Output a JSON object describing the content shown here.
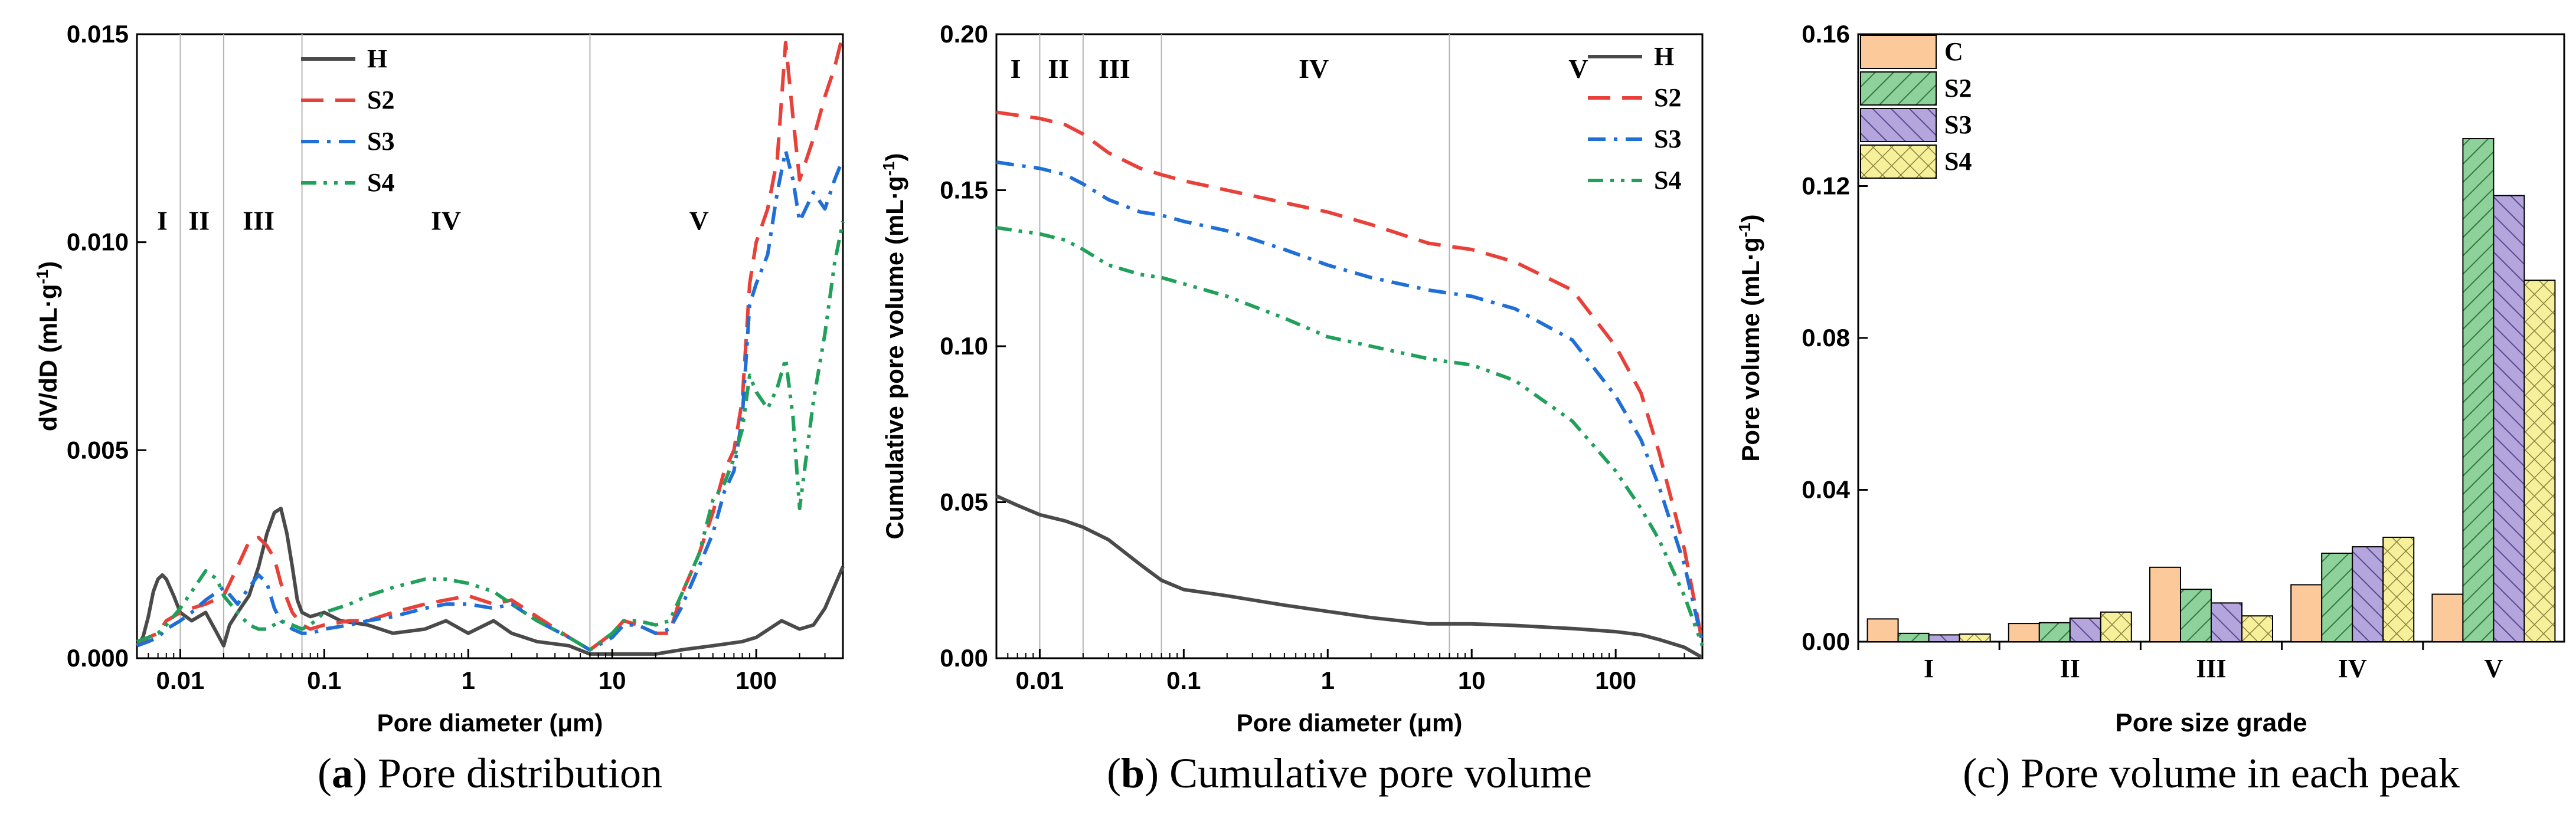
{
  "figure": {
    "captions": [
      {
        "letter": "a",
        "text": "Pore distribution"
      },
      {
        "letter": "b",
        "text": "Cumulative pore volume"
      },
      {
        "letter": "c",
        "text": "Pore volume in each peak"
      }
    ]
  },
  "chart_data": [
    {
      "id": "a",
      "type": "line",
      "title": "Pore distribution",
      "xlabel": "Pore diameter  (μm)",
      "ylabel": "dV/dD  (mL·g⁻¹)",
      "xscale": "log",
      "xlim": [
        0.005,
        400
      ],
      "ylim": [
        0,
        0.015
      ],
      "xticks": [
        0.01,
        0.1,
        1,
        10,
        100
      ],
      "xtick_labels": [
        "0.01",
        "0.1",
        "1",
        "10",
        "100"
      ],
      "yticks": [
        0,
        0.005,
        0.01,
        0.015
      ],
      "ytick_labels": [
        "0.000",
        "0.005",
        "0.010",
        "0.015"
      ],
      "grid": false,
      "legend_position": "top-center",
      "region_lines": [
        0.01,
        0.02,
        0.07,
        7
      ],
      "region_labels": [
        {
          "text": "I",
          "x": 0.0075,
          "y": 0.0103
        },
        {
          "text": "II",
          "x": 0.0135,
          "y": 0.0103
        },
        {
          "text": "III",
          "x": 0.035,
          "y": 0.0103
        },
        {
          "text": "IV",
          "x": 0.7,
          "y": 0.0103
        },
        {
          "text": "V",
          "x": 40,
          "y": 0.0103
        }
      ],
      "series": [
        {
          "name": "H",
          "color": "#4a4a4a",
          "dash": "solid",
          "x": [
            0.005,
            0.0055,
            0.006,
            0.0065,
            0.007,
            0.0075,
            0.008,
            0.009,
            0.01,
            0.012,
            0.015,
            0.018,
            0.02,
            0.022,
            0.025,
            0.03,
            0.035,
            0.04,
            0.045,
            0.05,
            0.055,
            0.06,
            0.065,
            0.07,
            0.08,
            0.1,
            0.13,
            0.2,
            0.3,
            0.5,
            0.7,
            1,
            1.5,
            2,
            3,
            5,
            7,
            10,
            15,
            20,
            30,
            50,
            80,
            100,
            150,
            200,
            250,
            300,
            400
          ],
          "y": [
            0.0003,
            0.0005,
            0.001,
            0.0016,
            0.0019,
            0.002,
            0.0019,
            0.0015,
            0.0011,
            0.0009,
            0.0011,
            0.0006,
            0.0003,
            0.0008,
            0.0011,
            0.0015,
            0.0022,
            0.003,
            0.0035,
            0.0036,
            0.003,
            0.0022,
            0.0014,
            0.0011,
            0.001,
            0.0011,
            0.0009,
            0.0008,
            0.0006,
            0.0007,
            0.0009,
            0.0006,
            0.0009,
            0.0006,
            0.0004,
            0.0003,
            0.0001,
            0.0001,
            0.0001,
            0.0001,
            0.0002,
            0.0003,
            0.0004,
            0.0005,
            0.0009,
            0.0007,
            0.0008,
            0.0012,
            0.0022
          ]
        },
        {
          "name": "S2",
          "color": "#e8413a",
          "dash": "long-dash",
          "x": [
            0.005,
            0.006,
            0.007,
            0.008,
            0.01,
            0.012,
            0.015,
            0.02,
            0.025,
            0.03,
            0.035,
            0.04,
            0.045,
            0.05,
            0.06,
            0.07,
            0.08,
            0.1,
            0.15,
            0.2,
            0.3,
            0.5,
            0.7,
            1,
            1.5,
            2,
            3,
            5,
            7,
            10,
            12,
            15,
            20,
            25,
            30,
            40,
            50,
            60,
            70,
            80,
            90,
            100,
            120,
            140,
            160,
            180,
            200,
            250,
            300,
            350,
            400
          ],
          "y": [
            0.0003,
            0.0005,
            0.0006,
            0.0009,
            0.0011,
            0.0012,
            0.0013,
            0.0015,
            0.0022,
            0.0028,
            0.0029,
            0.0027,
            0.0024,
            0.0018,
            0.0011,
            0.0008,
            0.0007,
            0.0008,
            0.0009,
            0.0009,
            0.0011,
            0.0013,
            0.0014,
            0.0015,
            0.0013,
            0.0014,
            0.001,
            0.0005,
            0.0002,
            0.0006,
            0.0009,
            0.0008,
            0.0006,
            0.0006,
            0.0015,
            0.0025,
            0.0035,
            0.0045,
            0.005,
            0.0062,
            0.009,
            0.01,
            0.0108,
            0.012,
            0.0148,
            0.013,
            0.0115,
            0.0125,
            0.0135,
            0.0142,
            0.015
          ]
        },
        {
          "name": "S3",
          "color": "#1f6fd6",
          "dash": "dash-dot",
          "x": [
            0.005,
            0.006,
            0.007,
            0.008,
            0.01,
            0.012,
            0.015,
            0.02,
            0.025,
            0.03,
            0.035,
            0.04,
            0.045,
            0.05,
            0.06,
            0.07,
            0.08,
            0.1,
            0.15,
            0.2,
            0.3,
            0.5,
            0.7,
            1,
            1.5,
            2,
            3,
            5,
            7,
            10,
            12,
            15,
            20,
            25,
            30,
            40,
            50,
            60,
            70,
            80,
            90,
            100,
            120,
            140,
            160,
            180,
            200,
            250,
            300,
            350,
            400
          ],
          "y": [
            0.0003,
            0.0004,
            0.0005,
            0.0007,
            0.0009,
            0.0011,
            0.0014,
            0.0017,
            0.0013,
            0.0017,
            0.002,
            0.0018,
            0.0012,
            0.0009,
            0.0007,
            0.0006,
            0.0006,
            0.0007,
            0.0008,
            0.0009,
            0.001,
            0.0012,
            0.0013,
            0.0013,
            0.0012,
            0.0013,
            0.0009,
            0.0005,
            0.0002,
            0.0005,
            0.0008,
            0.0008,
            0.0006,
            0.0007,
            0.0012,
            0.0022,
            0.003,
            0.004,
            0.0045,
            0.0058,
            0.0085,
            0.009,
            0.0097,
            0.0112,
            0.0122,
            0.0115,
            0.0105,
            0.0112,
            0.0108,
            0.0115,
            0.012
          ]
        },
        {
          "name": "S4",
          "color": "#21a05a",
          "dash": "dash-dot-dot",
          "x": [
            0.005,
            0.006,
            0.007,
            0.008,
            0.01,
            0.012,
            0.015,
            0.018,
            0.02,
            0.025,
            0.03,
            0.035,
            0.04,
            0.05,
            0.06,
            0.07,
            0.08,
            0.1,
            0.15,
            0.2,
            0.3,
            0.5,
            0.7,
            1,
            1.5,
            2,
            3,
            5,
            7,
            10,
            12,
            15,
            20,
            25,
            30,
            40,
            50,
            60,
            70,
            80,
            90,
            100,
            120,
            140,
            160,
            180,
            200,
            250,
            300,
            350,
            400
          ],
          "y": [
            0.0004,
            0.0005,
            0.0006,
            0.0008,
            0.0012,
            0.0016,
            0.0021,
            0.0019,
            0.0015,
            0.0011,
            0.0008,
            0.0007,
            0.0007,
            0.0009,
            0.0008,
            0.0007,
            0.0008,
            0.0011,
            0.0013,
            0.0015,
            0.0017,
            0.0019,
            0.0019,
            0.0018,
            0.0016,
            0.0013,
            0.0009,
            0.0005,
            0.0002,
            0.0006,
            0.0009,
            0.0009,
            0.0008,
            0.0009,
            0.0015,
            0.0025,
            0.0038,
            0.0042,
            0.0048,
            0.0055,
            0.0068,
            0.0064,
            0.006,
            0.0065,
            0.0072,
            0.0058,
            0.0036,
            0.0062,
            0.0078,
            0.0095,
            0.0105
          ]
        }
      ]
    },
    {
      "id": "b",
      "type": "line",
      "title": "Cumulative pore volume",
      "xlabel": "Pore diameter  (μm)",
      "ylabel": "Cumulative pore volume  (mL·g⁻¹)",
      "xscale": "log",
      "xlim": [
        0.005,
        400
      ],
      "ylim": [
        0,
        0.2
      ],
      "xticks": [
        0.01,
        0.1,
        1,
        10,
        100
      ],
      "xtick_labels": [
        "0.01",
        "0.1",
        "1",
        "10",
        "100"
      ],
      "yticks": [
        0,
        0.05,
        0.1,
        0.15,
        0.2
      ],
      "ytick_labels": [
        "0.00",
        "0.05",
        "0.10",
        "0.15",
        "0.20"
      ],
      "grid": false,
      "legend_position": "top-right",
      "region_lines": [
        0.01,
        0.02,
        0.07,
        7
      ],
      "region_labels": [
        {
          "text": "I",
          "x": 0.0068,
          "y": 0.186
        },
        {
          "text": "II",
          "x": 0.0135,
          "y": 0.186
        },
        {
          "text": "III",
          "x": 0.033,
          "y": 0.186
        },
        {
          "text": "IV",
          "x": 0.8,
          "y": 0.186
        },
        {
          "text": "V",
          "x": 55,
          "y": 0.186
        }
      ],
      "series": [
        {
          "name": "H",
          "color": "#4a4a4a",
          "dash": "solid",
          "x": [
            0.005,
            0.007,
            0.01,
            0.015,
            0.02,
            0.03,
            0.05,
            0.07,
            0.1,
            0.2,
            0.5,
            1,
            2,
            5,
            10,
            20,
            50,
            100,
            150,
            200,
            300,
            400
          ],
          "y": [
            0.052,
            0.049,
            0.046,
            0.044,
            0.042,
            0.038,
            0.03,
            0.025,
            0.022,
            0.02,
            0.017,
            0.015,
            0.013,
            0.011,
            0.011,
            0.0105,
            0.0095,
            0.0085,
            0.0075,
            0.006,
            0.0035,
            0.0002
          ]
        },
        {
          "name": "S2",
          "color": "#e8413a",
          "dash": "long-dash",
          "x": [
            0.005,
            0.007,
            0.01,
            0.015,
            0.02,
            0.03,
            0.05,
            0.07,
            0.1,
            0.2,
            0.5,
            1,
            2,
            5,
            7,
            10,
            20,
            50,
            100,
            150,
            200,
            300,
            400
          ],
          "y": [
            0.175,
            0.174,
            0.173,
            0.171,
            0.168,
            0.162,
            0.157,
            0.155,
            0.153,
            0.15,
            0.146,
            0.143,
            0.139,
            0.133,
            0.132,
            0.131,
            0.127,
            0.118,
            0.1,
            0.085,
            0.066,
            0.035,
            0.005
          ]
        },
        {
          "name": "S3",
          "color": "#1f6fd6",
          "dash": "dash-dot",
          "x": [
            0.005,
            0.007,
            0.01,
            0.015,
            0.02,
            0.03,
            0.05,
            0.07,
            0.1,
            0.2,
            0.5,
            1,
            2,
            5,
            7,
            10,
            20,
            50,
            100,
            150,
            200,
            300,
            400
          ],
          "y": [
            0.159,
            0.158,
            0.157,
            0.155,
            0.152,
            0.147,
            0.143,
            0.142,
            0.14,
            0.137,
            0.131,
            0.126,
            0.122,
            0.118,
            0.117,
            0.116,
            0.112,
            0.102,
            0.084,
            0.07,
            0.055,
            0.03,
            0.005
          ]
        },
        {
          "name": "S4",
          "color": "#21a05a",
          "dash": "dash-dot-dot",
          "x": [
            0.005,
            0.007,
            0.01,
            0.015,
            0.02,
            0.03,
            0.05,
            0.07,
            0.1,
            0.2,
            0.5,
            1,
            2,
            5,
            7,
            10,
            20,
            50,
            100,
            150,
            200,
            300,
            400
          ],
          "y": [
            0.138,
            0.137,
            0.136,
            0.134,
            0.131,
            0.126,
            0.123,
            0.122,
            0.12,
            0.116,
            0.109,
            0.103,
            0.1,
            0.096,
            0.095,
            0.094,
            0.089,
            0.076,
            0.06,
            0.048,
            0.038,
            0.02,
            0.004
          ]
        }
      ]
    },
    {
      "id": "c",
      "type": "bar",
      "title": "Pore volume in each peak",
      "xlabel": "Pore size grade",
      "ylabel": "Pore volume  (mL·g⁻¹)",
      "ylim": [
        0,
        0.16
      ],
      "yticks": [
        0,
        0.04,
        0.08,
        0.12,
        0.16
      ],
      "ytick_labels": [
        "0.00",
        "0.04",
        "0.08",
        "0.12",
        "0.16"
      ],
      "grid": false,
      "legend_position": "top-left",
      "categories": [
        "I",
        "II",
        "III",
        "IV",
        "V"
      ],
      "series": [
        {
          "name": "C",
          "color": "#fbc99a",
          "pattern": "solid",
          "values": [
            0.006,
            0.0048,
            0.0196,
            0.015,
            0.0125
          ]
        },
        {
          "name": "S2",
          "color": "#8fd19a",
          "pattern": "diagonal",
          "values": [
            0.0022,
            0.005,
            0.0138,
            0.0233,
            0.1325
          ]
        },
        {
          "name": "S3",
          "color": "#b4a6dc",
          "pattern": "backdiagonal",
          "values": [
            0.0018,
            0.0062,
            0.0102,
            0.025,
            0.1175
          ]
        },
        {
          "name": "S4",
          "color": "#f7f09a",
          "pattern": "crosshatch",
          "values": [
            0.002,
            0.0078,
            0.0068,
            0.0275,
            0.0952
          ]
        }
      ]
    }
  ]
}
